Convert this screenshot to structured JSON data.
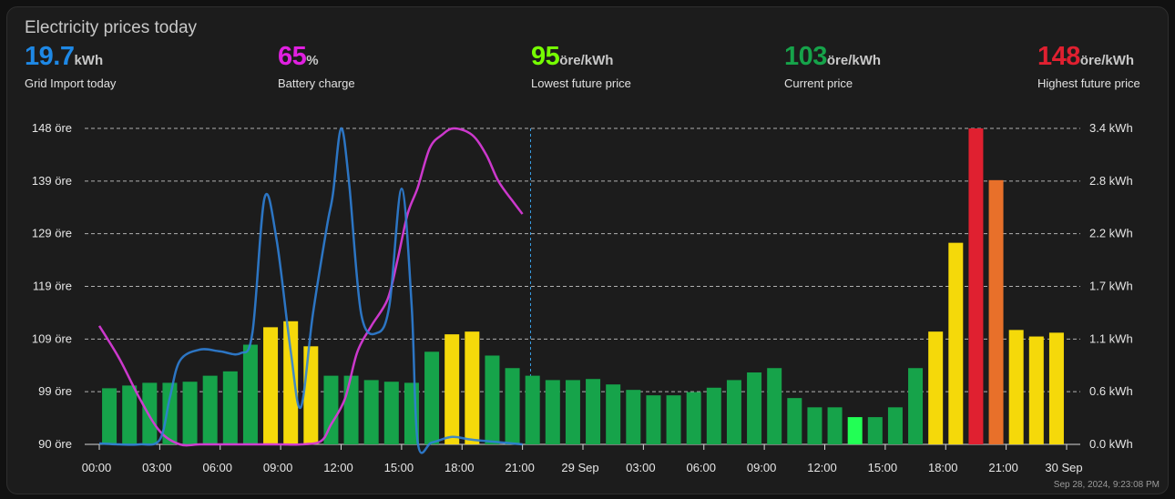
{
  "card": {
    "title": "Electricity prices today",
    "timestamp": "Sep 28, 2024, 9:23:08 PM"
  },
  "stats": [
    {
      "value": "19.7",
      "unit": "kWh",
      "label": "Grid Import today",
      "color": "#1e88e5"
    },
    {
      "value": "65",
      "unit": "%",
      "label": "Battery charge",
      "color": "#e020e0"
    },
    {
      "value": "95",
      "unit": "öre/kWh",
      "label": "Lowest future price",
      "color": "#76ff03"
    },
    {
      "value": "103",
      "unit": "öre/kWh",
      "label": "Current price",
      "color": "#16a34a"
    },
    {
      "value": "148",
      "unit": "öre/kWh",
      "label": "Highest future price",
      "color": "#e02030"
    }
  ],
  "chart_data": {
    "type": "bar",
    "left_axis": {
      "min": 90,
      "max": 148,
      "ticks": [
        90,
        99,
        109,
        119,
        129,
        139,
        148
      ],
      "tick_labels": [
        "90 öre",
        "99 öre",
        "109 öre",
        "119 öre",
        "129 öre",
        "139 öre",
        "148 öre"
      ]
    },
    "right_axis": {
      "min": 0,
      "max": 3.4,
      "tick_labels": [
        "0.0 kWh",
        "0.6 kWh",
        "1.1 kWh",
        "1.7 kWh",
        "2.2 kWh",
        "2.8 kWh",
        "3.4 kWh"
      ]
    },
    "x_axis": {
      "start_hour": 0,
      "end_hour": 48,
      "tick_labels": [
        "00:00",
        "03:00",
        "06:00",
        "09:00",
        "12:00",
        "15:00",
        "18:00",
        "21:00",
        "29 Sep",
        "03:00",
        "06:00",
        "09:00",
        "12:00",
        "15:00",
        "18:00",
        "21:00",
        "30 Sep"
      ]
    },
    "now_hour": 21.4,
    "grid": true,
    "colors": {
      "green": "#16a34a",
      "yellow": "#f5d90a",
      "orange": "#e8702a",
      "red": "#e02030",
      "lowest": "#22ff55"
    },
    "price_series": {
      "unit": "öre/kWh",
      "values": [
        100.3,
        100.8,
        101.3,
        101.3,
        101.5,
        102.6,
        103.4,
        108.3,
        111.5,
        112.6,
        108.0,
        102.6,
        102.6,
        101.8,
        101.5,
        101.3,
        107.0,
        110.2,
        110.7,
        106.3,
        104.0,
        102.6,
        101.8,
        101.8,
        102.0,
        101.0,
        100.0,
        99.0,
        99.0,
        99.6,
        100.4,
        101.8,
        103.2,
        104.0,
        98.5,
        96.8,
        96.8,
        95.0,
        95.0,
        96.8,
        104.0,
        110.7,
        127.0,
        148.0,
        138.5,
        111.0,
        109.8,
        110.5
      ],
      "color_keys": [
        "green",
        "green",
        "green",
        "green",
        "green",
        "green",
        "green",
        "green",
        "yellow",
        "yellow",
        "yellow",
        "green",
        "green",
        "green",
        "green",
        "green",
        "green",
        "yellow",
        "yellow",
        "green",
        "green",
        "green",
        "green",
        "green",
        "green",
        "green",
        "green",
        "green",
        "green",
        "green",
        "green",
        "green",
        "green",
        "green",
        "green",
        "green",
        "green",
        "lowest",
        "green",
        "green",
        "green",
        "yellow",
        "yellow",
        "red",
        "orange",
        "yellow",
        "yellow",
        "yellow"
      ]
    },
    "grid_import_series": {
      "unit": "kWh",
      "points": [
        [
          0,
          0.01
        ],
        [
          1,
          0.0
        ],
        [
          2,
          0.0
        ],
        [
          3,
          0.05
        ],
        [
          3.5,
          0.5
        ],
        [
          4,
          0.9
        ],
        [
          5,
          1.02
        ],
        [
          6,
          1.0
        ],
        [
          7,
          0.98
        ],
        [
          7.6,
          1.2
        ],
        [
          8.2,
          2.65
        ],
        [
          8.8,
          2.2
        ],
        [
          9.5,
          1.0
        ],
        [
          10,
          0.4
        ],
        [
          10.6,
          1.4
        ],
        [
          11.3,
          2.35
        ],
        [
          11.6,
          2.7
        ],
        [
          12.0,
          3.4
        ],
        [
          12.4,
          2.8
        ],
        [
          13,
          1.4
        ],
        [
          13.8,
          1.2
        ],
        [
          14.4,
          1.5
        ],
        [
          15.0,
          2.75
        ],
        [
          15.5,
          1.5
        ],
        [
          15.8,
          0.02
        ],
        [
          16.5,
          0.02
        ],
        [
          17.5,
          0.08
        ],
        [
          18.5,
          0.05
        ],
        [
          20.5,
          0.01
        ],
        [
          21.0,
          0.0
        ]
      ]
    },
    "battery_series": {
      "unit": "%",
      "points": [
        [
          0,
          77
        ],
        [
          1,
          72
        ],
        [
          2,
          66
        ],
        [
          3,
          61
        ],
        [
          4,
          59
        ],
        [
          5,
          59
        ],
        [
          6,
          59
        ],
        [
          7,
          59
        ],
        [
          8,
          59
        ],
        [
          9,
          59
        ],
        [
          10,
          59
        ],
        [
          11,
          59.5
        ],
        [
          11.5,
          62
        ],
        [
          12.2,
          66
        ],
        [
          12.8,
          73
        ],
        [
          13.5,
          77
        ],
        [
          14.3,
          81
        ],
        [
          14.8,
          87
        ],
        [
          15.3,
          94
        ],
        [
          15.8,
          98
        ],
        [
          16.4,
          104
        ],
        [
          17.0,
          106
        ],
        [
          17.6,
          107
        ],
        [
          18.5,
          106
        ],
        [
          19.2,
          103
        ],
        [
          19.8,
          99
        ],
        [
          20.5,
          96
        ],
        [
          21.0,
          94
        ]
      ],
      "left_axis_min": 59,
      "left_axis_max": 107
    }
  }
}
